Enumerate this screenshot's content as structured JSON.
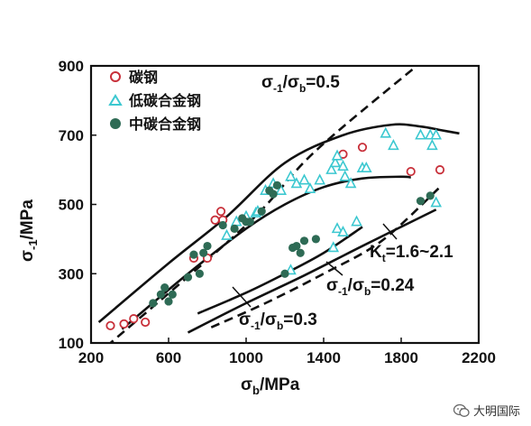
{
  "chart_data": {
    "type": "scatter",
    "xlabel": "σ",
    "xlabel_sub": "b",
    "xlabel_unit": "/MPa",
    "ylabel": "σ",
    "ylabel_sub": "-1",
    "ylabel_unit": "/MPa",
    "xlim": [
      200,
      2200
    ],
    "ylim": [
      100,
      900
    ],
    "xticks": [
      "200",
      "600",
      "1000",
      "1400",
      "1800",
      "2200"
    ],
    "yticks": [
      "100",
      "300",
      "500",
      "700",
      "900"
    ],
    "legend_position": "top-left",
    "series": [
      {
        "name": "碳钢",
        "marker": "open-circle",
        "color": "#c8303a",
        "points": [
          [
            300,
            150
          ],
          [
            370,
            155
          ],
          [
            420,
            170
          ],
          [
            480,
            160
          ],
          [
            730,
            345
          ],
          [
            800,
            345
          ],
          [
            840,
            455
          ],
          [
            870,
            480
          ],
          [
            880,
            455
          ],
          [
            1500,
            645
          ],
          [
            1600,
            665
          ],
          [
            1850,
            595
          ],
          [
            2000,
            600
          ]
        ]
      },
      {
        "name": "低碳合金钢",
        "marker": "open-triangle",
        "color": "#3cc8d0",
        "points": [
          [
            900,
            410
          ],
          [
            950,
            450
          ],
          [
            1000,
            465
          ],
          [
            1050,
            475
          ],
          [
            1060,
            480
          ],
          [
            1100,
            540
          ],
          [
            1140,
            560
          ],
          [
            1180,
            540
          ],
          [
            1230,
            580
          ],
          [
            1260,
            560
          ],
          [
            1300,
            570
          ],
          [
            1330,
            545
          ],
          [
            1380,
            570
          ],
          [
            1440,
            600
          ],
          [
            1460,
            620
          ],
          [
            1470,
            640
          ],
          [
            1500,
            610
          ],
          [
            1510,
            580
          ],
          [
            1540,
            560
          ],
          [
            1600,
            605
          ],
          [
            1620,
            605
          ],
          [
            1720,
            705
          ],
          [
            1760,
            670
          ],
          [
            1900,
            700
          ],
          [
            1950,
            700
          ],
          [
            1960,
            670
          ],
          [
            1980,
            700
          ],
          [
            1980,
            505
          ],
          [
            1230,
            310
          ],
          [
            1450,
            375
          ],
          [
            1470,
            430
          ],
          [
            1500,
            420
          ],
          [
            1570,
            450
          ]
        ]
      },
      {
        "name": "中碳合金钢",
        "marker": "filled-circle",
        "color": "#2e6b55",
        "points": [
          [
            520,
            215
          ],
          [
            560,
            240
          ],
          [
            580,
            260
          ],
          [
            600,
            220
          ],
          [
            620,
            240
          ],
          [
            700,
            290
          ],
          [
            730,
            355
          ],
          [
            760,
            300
          ],
          [
            780,
            360
          ],
          [
            800,
            380
          ],
          [
            880,
            440
          ],
          [
            940,
            430
          ],
          [
            980,
            460
          ],
          [
            1000,
            450
          ],
          [
            1020,
            450
          ],
          [
            1080,
            480
          ],
          [
            1120,
            540
          ],
          [
            1140,
            530
          ],
          [
            1160,
            555
          ],
          [
            1200,
            300
          ],
          [
            1240,
            375
          ],
          [
            1260,
            380
          ],
          [
            1280,
            360
          ],
          [
            1300,
            395
          ],
          [
            1360,
            400
          ],
          [
            1900,
            510
          ],
          [
            1950,
            525
          ]
        ]
      }
    ],
    "curves": [
      {
        "style": "solid",
        "points": [
          [
            240,
            160
          ],
          [
            600,
            330
          ],
          [
            900,
            465
          ],
          [
            1200,
            620
          ],
          [
            1500,
            700
          ],
          [
            1750,
            730
          ],
          [
            1900,
            725
          ],
          [
            2000,
            715
          ],
          [
            2100,
            705
          ]
        ]
      },
      {
        "style": "solid",
        "points": [
          [
            360,
            140
          ],
          [
            700,
            300
          ],
          [
            1000,
            430
          ],
          [
            1200,
            500
          ],
          [
            1400,
            550
          ],
          [
            1600,
            575
          ],
          [
            1800,
            580
          ],
          [
            1850,
            578
          ]
        ]
      },
      {
        "style": "solid",
        "points": [
          [
            750,
            185
          ],
          [
            1000,
            245
          ],
          [
            1200,
            300
          ],
          [
            1400,
            360
          ],
          [
            1600,
            435
          ]
        ]
      },
      {
        "style": "solid",
        "points": [
          [
            700,
            130
          ],
          [
            1000,
            215
          ],
          [
            1300,
            295
          ],
          [
            1600,
            380
          ],
          [
            1980,
            485
          ]
        ]
      },
      {
        "style": "dashed",
        "points": [
          [
            280,
            90
          ],
          [
            1000,
            440
          ],
          [
            1350,
            650
          ],
          [
            1880,
            900
          ]
        ]
      },
      {
        "style": "dashed",
        "points": [
          [
            820,
            145
          ],
          [
            1100,
            215
          ],
          [
            1400,
            300
          ],
          [
            1700,
            395
          ],
          [
            2000,
            550
          ]
        ]
      }
    ],
    "annotations": {
      "ratio_05": "σ-1/σb=0.5",
      "ratio_024": "σ-1/σb=0.24",
      "ratio_03": "σ-1/σb=0.3",
      "kt": "Kt=1.6~2.1"
    },
    "annotation_parts": {
      "sigma": "σ",
      "sub_m1": "-1",
      "slash": "/",
      "sub_b": "b",
      "val_05": "=0.5",
      "val_024": "=0.24",
      "val_03": "=0.3",
      "kt_k": "K",
      "kt_sub": "t",
      "kt_val": "=1.6~2.1"
    }
  },
  "watermark": {
    "text": "大明国际",
    "icon": "wechat-icon"
  }
}
